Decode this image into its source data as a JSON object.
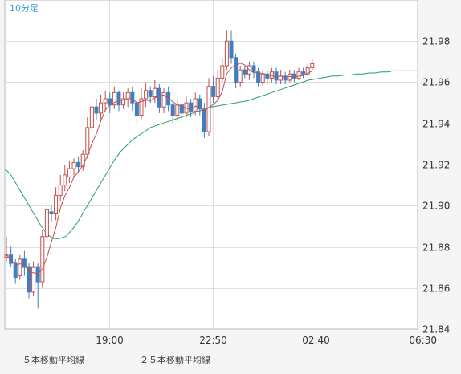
{
  "chart_data": {
    "type": "candlestick",
    "title": "10分足",
    "ylim": [
      21.84,
      22.0
    ],
    "y_ticks": [
      "21.98",
      "21.96",
      "21.94",
      "21.92",
      "21.90",
      "21.88",
      "21.86",
      "21.84"
    ],
    "y_tick_values": [
      21.98,
      21.96,
      21.94,
      21.92,
      21.9,
      21.88,
      21.86,
      21.84
    ],
    "x_ticks": [
      "19:00",
      "22:50",
      "02:40",
      "06:30"
    ],
    "x_tick_index": [
      23,
      46,
      69,
      92
    ],
    "grid": true,
    "legend_position": "bottom",
    "up_color": "#c0504d",
    "down_color": "#3d7fc1",
    "series": [
      {
        "name": "５本移動平均線",
        "color": "#c0504d"
      },
      {
        "name": "２５本移動平均線",
        "color": "#2a9d73"
      }
    ],
    "ma25": [
      21.918,
      21.915,
      21.91,
      21.905,
      21.9,
      21.895,
      21.89,
      21.886,
      21.884,
      21.884,
      21.885,
      21.888,
      21.892,
      21.897,
      21.902,
      21.907,
      21.912,
      21.917,
      21.922,
      21.926,
      21.929,
      21.932,
      21.934,
      21.936,
      21.938,
      21.939,
      21.94,
      21.941,
      21.942,
      21.943,
      21.944,
      21.945,
      21.946,
      21.947,
      21.948,
      21.9485,
      21.949,
      21.9495,
      21.95,
      21.9505,
      21.951,
      21.952,
      21.953,
      21.954,
      21.955,
      21.956,
      21.957,
      21.958,
      21.959,
      21.96,
      21.961,
      21.9615,
      21.962,
      21.9625,
      21.963,
      21.963,
      21.9635,
      21.9635,
      21.964,
      21.964,
      21.9645,
      21.9645,
      21.965,
      21.965,
      21.9655,
      21.9655,
      21.9655,
      21.9655,
      21.9655
    ],
    "candles": [
      [
        21.875,
        21.876,
        21.885,
        21.873
      ],
      [
        21.876,
        21.872,
        21.88,
        21.87
      ],
      [
        21.872,
        21.865,
        21.874,
        21.862
      ],
      [
        21.866,
        21.874,
        21.876,
        21.864
      ],
      [
        21.874,
        21.87,
        21.878,
        21.866
      ],
      [
        21.87,
        21.858,
        21.872,
        21.855
      ],
      [
        21.858,
        21.87,
        21.873,
        21.856
      ],
      [
        21.87,
        21.863,
        21.872,
        21.85
      ],
      [
        21.863,
        21.885,
        21.888,
        21.86
      ],
      [
        21.885,
        21.898,
        21.902,
        21.883
      ],
      [
        21.897,
        21.896,
        21.9,
        21.892
      ],
      [
        21.896,
        21.905,
        21.909,
        21.893
      ],
      [
        21.905,
        21.91,
        21.915,
        21.902
      ],
      [
        21.91,
        21.915,
        21.92,
        21.907
      ],
      [
        21.914,
        21.918,
        21.922,
        21.911
      ],
      [
        21.918,
        21.921,
        21.923,
        21.914
      ],
      [
        21.921,
        21.919,
        21.924,
        21.916
      ],
      [
        21.919,
        21.925,
        21.927,
        21.917
      ],
      [
        21.925,
        21.938,
        21.943,
        21.923
      ],
      [
        21.938,
        21.948,
        21.95,
        21.936
      ],
      [
        21.948,
        21.945,
        21.952,
        21.942
      ],
      [
        21.945,
        21.95,
        21.954,
        21.942
      ],
      [
        21.95,
        21.952,
        21.956,
        21.946
      ],
      [
        21.952,
        21.949,
        21.955,
        21.945
      ],
      [
        21.949,
        21.955,
        21.958,
        21.947
      ],
      [
        21.955,
        21.949,
        21.956,
        21.946
      ],
      [
        21.949,
        21.952,
        21.955,
        21.947
      ],
      [
        21.952,
        21.955,
        21.957,
        21.948
      ],
      [
        21.955,
        21.95,
        21.958,
        21.946
      ],
      [
        21.95,
        21.944,
        21.952,
        21.94
      ],
      [
        21.944,
        21.952,
        21.957,
        21.942
      ],
      [
        21.952,
        21.956,
        21.96,
        21.948
      ],
      [
        21.956,
        21.953,
        21.958,
        21.95
      ],
      [
        21.953,
        21.957,
        21.961,
        21.95
      ],
      [
        21.957,
        21.948,
        21.959,
        21.945
      ],
      [
        21.948,
        21.955,
        21.957,
        21.945
      ],
      [
        21.955,
        21.949,
        21.958,
        21.946
      ],
      [
        21.949,
        21.944,
        21.951,
        21.94
      ],
      [
        21.944,
        21.949,
        21.952,
        21.941
      ],
      [
        21.949,
        21.945,
        21.951,
        21.942
      ],
      [
        21.945,
        21.95,
        21.953,
        21.943
      ],
      [
        21.95,
        21.946,
        21.952,
        21.943
      ],
      [
        21.946,
        21.952,
        21.955,
        21.944
      ],
      [
        21.952,
        21.947,
        21.954,
        21.944
      ],
      [
        21.947,
        21.936,
        21.95,
        21.933
      ],
      [
        21.936,
        21.958,
        21.962,
        21.934
      ],
      [
        21.958,
        21.953,
        21.963,
        21.95
      ],
      [
        21.953,
        21.962,
        21.966,
        21.951
      ],
      [
        21.962,
        21.968,
        21.972,
        21.96
      ],
      [
        21.968,
        21.98,
        21.985,
        21.966
      ],
      [
        21.98,
        21.972,
        21.985,
        21.969
      ],
      [
        21.972,
        21.96,
        21.974,
        21.957
      ],
      [
        21.96,
        21.966,
        21.968,
        21.958
      ],
      [
        21.966,
        21.964,
        21.968,
        21.962
      ],
      [
        21.964,
        21.968,
        21.97,
        21.961
      ],
      [
        21.968,
        21.965,
        21.97,
        21.962
      ],
      [
        21.965,
        21.96,
        21.967,
        21.958
      ],
      [
        21.96,
        21.964,
        21.966,
        21.958
      ],
      [
        21.964,
        21.962,
        21.966,
        21.959
      ],
      [
        21.962,
        21.965,
        21.967,
        21.96
      ],
      [
        21.965,
        21.961,
        21.967,
        21.959
      ],
      [
        21.961,
        21.963,
        21.966,
        21.959
      ],
      [
        21.963,
        21.961,
        21.965,
        21.959
      ],
      [
        21.961,
        21.964,
        21.966,
        21.96
      ],
      [
        21.964,
        21.962,
        21.966,
        21.96
      ],
      [
        21.962,
        21.965,
        21.967,
        21.961
      ],
      [
        21.965,
        21.964,
        21.967,
        21.962
      ],
      [
        21.964,
        21.967,
        21.969,
        21.963
      ],
      [
        21.967,
        21.969,
        21.971,
        21.966
      ]
    ]
  }
}
